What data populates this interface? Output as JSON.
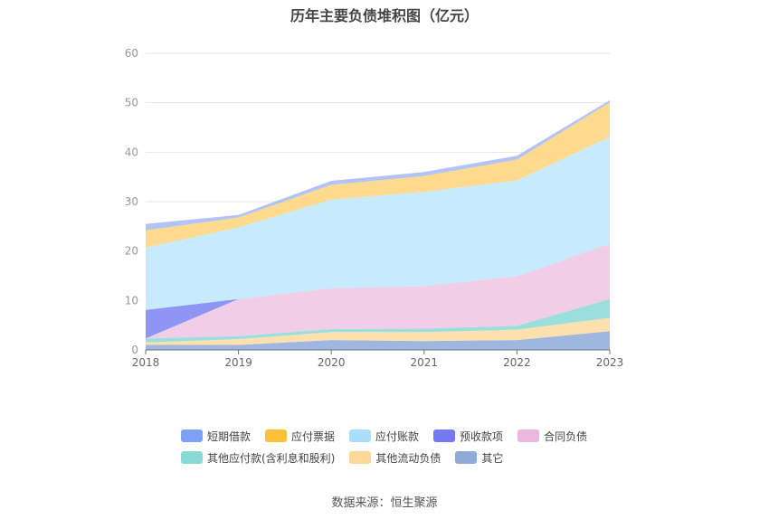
{
  "chart_data": {
    "type": "area",
    "stacked": true,
    "title": "历年主要负债堆积图（亿元）",
    "x": [
      "2018",
      "2019",
      "2020",
      "2021",
      "2022",
      "2023"
    ],
    "ylim": [
      0,
      60
    ],
    "yticks": [
      "0",
      "10",
      "20",
      "30",
      "40",
      "50",
      "60"
    ],
    "grid": true,
    "series": [
      {
        "name": "其它",
        "color": "#8ea9d8",
        "values": [
          1.0,
          1.0,
          2.0,
          1.8,
          2.0,
          3.8
        ]
      },
      {
        "name": "其他流动负债",
        "color": "#fddba0",
        "values": [
          0.5,
          1.2,
          1.6,
          1.8,
          2.1,
          2.7
        ]
      },
      {
        "name": "其他应付款(含利息和股利)",
        "color": "#89d9d6",
        "values": [
          0.8,
          0.6,
          0.6,
          0.7,
          0.8,
          3.8
        ]
      },
      {
        "name": "合同负债",
        "color": "#efc6e4",
        "values": [
          0,
          7.5,
          8.3,
          8.6,
          10.0,
          11.2
        ]
      },
      {
        "name": "预收款项",
        "color": "#7b83f2",
        "values": [
          5.8,
          0,
          0,
          0,
          0,
          0
        ]
      },
      {
        "name": "应付账款",
        "color": "#bde7fb",
        "values": [
          12.6,
          14.5,
          17.9,
          19.1,
          19.4,
          21.6
        ]
      },
      {
        "name": "应付票据",
        "color": "#fdd47a",
        "values": [
          3.5,
          2.0,
          3.0,
          3.2,
          4.2,
          7.0
        ]
      },
      {
        "name": "短期借款",
        "color": "#a5b9f5",
        "values": [
          1.3,
          0.5,
          0.8,
          0.8,
          0.8,
          0.4
        ]
      }
    ],
    "legend": [
      {
        "name": "短期借款",
        "color": "#7fa1f5"
      },
      {
        "name": "应付票据",
        "color": "#fbc13b"
      },
      {
        "name": "应付账款",
        "color": "#a9dffb"
      },
      {
        "name": "预收款项",
        "color": "#7479f2"
      },
      {
        "name": "合同负债",
        "color": "#ebb9dd"
      },
      {
        "name": "其他应付款(含利息和股利)",
        "color": "#89d9d6"
      },
      {
        "name": "其他流动负债",
        "color": "#fdd89a"
      },
      {
        "name": "其它",
        "color": "#8eaad8"
      }
    ]
  },
  "source": "数据来源：恒生聚源"
}
